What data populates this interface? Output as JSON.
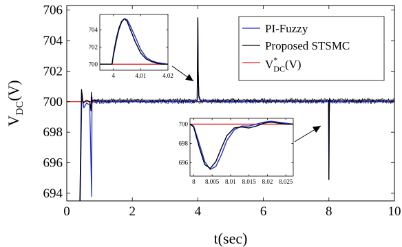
{
  "chart_data": [
    {
      "type": "line",
      "role": "main",
      "xlabel": "t(sec)",
      "ylabel": "V_DC(V)",
      "xlim": [
        0,
        10
      ],
      "ylim": [
        693.5,
        706.3
      ],
      "xticks": [
        "0",
        "2",
        "4",
        "6",
        "8",
        "10"
      ],
      "xtick_values": [
        0,
        2,
        4,
        6,
        8,
        10
      ],
      "yticks": [
        "694",
        "696",
        "698",
        "700",
        "702",
        "704",
        "706"
      ],
      "ytick_values": [
        694,
        696,
        698,
        700,
        702,
        704,
        706
      ],
      "grid": false,
      "legend_position": "top-right",
      "legend": [
        {
          "label": "PI-Fuzzy",
          "color": "#1f2fd6"
        },
        {
          "label": "Proposed STSMC",
          "color": "#000000"
        },
        {
          "label": "V*DC(V)",
          "color": "#e02020"
        }
      ],
      "series": [
        {
          "name": "PI-Fuzzy",
          "color": "#1f2fd6",
          "x": [
            0.41,
            0.46,
            0.52,
            0.6,
            0.7,
            0.76,
            0.77,
            0.78,
            0.8,
            1.0,
            2.0,
            3.0,
            3.98,
            4.0,
            4.01,
            4.03,
            4.08,
            5.0,
            6.0,
            7.0,
            7.99,
            8.0,
            8.01,
            8.02,
            8.05,
            9.0,
            10.0
          ],
          "y": [
            693.5,
            700.5,
            699.6,
            699.9,
            699.8,
            693.8,
            700.3,
            699.9,
            700.1,
            700.0,
            700.0,
            700.0,
            700.0,
            705.4,
            702.0,
            700.3,
            700.0,
            700.0,
            700.0,
            700.0,
            700.0,
            694.9,
            699.0,
            700.2,
            700.0,
            700.0,
            700.0
          ]
        },
        {
          "name": "Proposed STSMC",
          "color": "#000000",
          "x": [
            0.4,
            0.45,
            0.5,
            0.6,
            0.7,
            0.74,
            0.75,
            0.76,
            0.8,
            1.0,
            2.0,
            3.0,
            3.98,
            4.0,
            4.01,
            4.03,
            4.08,
            5.0,
            6.0,
            7.0,
            7.99,
            8.0,
            8.01,
            8.02,
            8.05,
            9.0,
            10.0
          ],
          "y": [
            693.5,
            700.8,
            699.9,
            700.1,
            700.0,
            699.4,
            700.6,
            700.0,
            700.1,
            700.1,
            700.1,
            700.1,
            700.1,
            705.5,
            702.0,
            700.4,
            700.1,
            700.1,
            700.1,
            700.1,
            700.1,
            694.9,
            699.0,
            700.2,
            700.1,
            700.1,
            700.1
          ]
        },
        {
          "name": "V*DC(V)",
          "color": "#e02020",
          "x": [
            0,
            10
          ],
          "y": [
            700,
            700
          ]
        }
      ]
    },
    {
      "type": "line",
      "role": "inset",
      "xlim": [
        3.995,
        4.02
      ],
      "ylim": [
        699.3,
        705.8
      ],
      "xticks": [
        "4",
        "4.01",
        "4.02"
      ],
      "xtick_values": [
        4.0,
        4.01,
        4.02
      ],
      "yticks": [
        "700",
        "702",
        "704"
      ],
      "ytick_values": [
        700,
        702,
        704
      ],
      "series": [
        {
          "name": "PI-Fuzzy",
          "color": "#1f2fd6",
          "x": [
            3.995,
            3.9995,
            4.0,
            4.001,
            4.002,
            4.003,
            4.004,
            4.005,
            4.006,
            4.008,
            4.01,
            4.012,
            4.014,
            4.016,
            4.018,
            4.02
          ],
          "y": [
            700.0,
            700.0,
            701.0,
            702.6,
            704.0,
            704.9,
            705.3,
            705.2,
            704.6,
            703.2,
            701.7,
            700.8,
            700.4,
            700.2,
            700.1,
            700.0
          ]
        },
        {
          "name": "Proposed STSMC",
          "color": "#000000",
          "x": [
            3.995,
            3.9995,
            4.0,
            4.001,
            4.002,
            4.003,
            4.004,
            4.005,
            4.006,
            4.008,
            4.01,
            4.012,
            4.014,
            4.016,
            4.018,
            4.02
          ],
          "y": [
            700.0,
            700.0,
            701.2,
            702.9,
            704.2,
            705.0,
            705.3,
            705.0,
            704.2,
            702.6,
            701.3,
            700.6,
            700.3,
            700.1,
            700.0,
            700.0
          ]
        },
        {
          "name": "V*DC(V)",
          "color": "#e02020",
          "x": [
            3.995,
            4.02
          ],
          "y": [
            700,
            700
          ]
        }
      ]
    },
    {
      "type": "line",
      "role": "inset",
      "xlim": [
        7.999,
        8.027
      ],
      "ylim": [
        694.6,
        700.6
      ],
      "xticks": [
        "8",
        "8.005",
        "8.01",
        "8.015",
        "8.02",
        "8.025"
      ],
      "xtick_values": [
        8.0,
        8.005,
        8.01,
        8.015,
        8.02,
        8.025
      ],
      "yticks": [
        "696",
        "698",
        "700"
      ],
      "ytick_values": [
        696,
        698,
        700
      ],
      "series": [
        {
          "name": "PI-Fuzzy",
          "color": "#1f2fd6",
          "x": [
            7.999,
            8.0,
            8.0015,
            8.003,
            8.0045,
            8.006,
            8.0075,
            8.009,
            8.011,
            8.013,
            8.015,
            8.017,
            8.019,
            8.021,
            8.023,
            8.025,
            8.027
          ],
          "y": [
            700.0,
            699.8,
            698.0,
            696.1,
            695.3,
            695.6,
            696.8,
            698.3,
            699.4,
            699.8,
            699.8,
            700.0,
            700.2,
            700.3,
            700.2,
            700.1,
            700.0
          ]
        },
        {
          "name": "Proposed STSMC",
          "color": "#000000",
          "x": [
            7.999,
            8.0,
            8.0015,
            8.003,
            8.0045,
            8.006,
            8.0075,
            8.009,
            8.011,
            8.013,
            8.015,
            8.017,
            8.019,
            8.021,
            8.023,
            8.025,
            8.027
          ],
          "y": [
            700.0,
            699.7,
            697.6,
            695.8,
            695.4,
            696.1,
            697.5,
            698.8,
            699.6,
            699.7,
            699.6,
            699.8,
            700.1,
            700.2,
            700.1,
            700.0,
            700.0
          ]
        },
        {
          "name": "V*DC(V)",
          "color": "#e02020",
          "x": [
            7.999,
            8.027
          ],
          "y": [
            700,
            700
          ]
        }
      ]
    }
  ]
}
